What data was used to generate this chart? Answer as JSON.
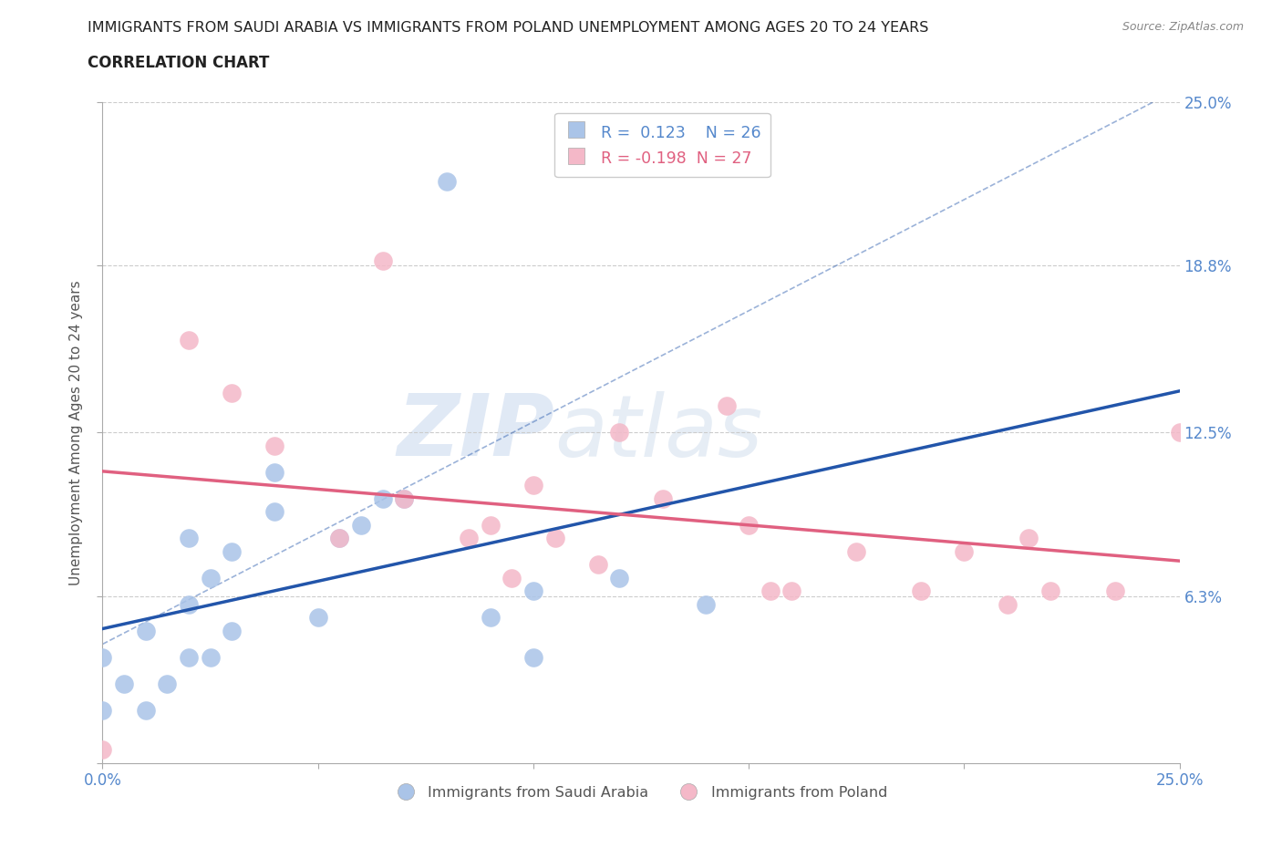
{
  "title_line1": "IMMIGRANTS FROM SAUDI ARABIA VS IMMIGRANTS FROM POLAND UNEMPLOYMENT AMONG AGES 20 TO 24 YEARS",
  "title_line2": "CORRELATION CHART",
  "source": "Source: ZipAtlas.com",
  "ylabel": "Unemployment Among Ages 20 to 24 years",
  "xlim": [
    0.0,
    0.25
  ],
  "ylim": [
    0.0,
    0.25
  ],
  "yticks": [
    0.0,
    0.063,
    0.125,
    0.188,
    0.25
  ],
  "ytick_labels_right": [
    "",
    "6.3%",
    "12.5%",
    "18.8%",
    "25.0%"
  ],
  "xtick_labels": [
    "0.0%",
    "",
    "",
    "",
    "",
    "25.0%"
  ],
  "r_saudi": 0.123,
  "n_saudi": 26,
  "r_poland": -0.198,
  "n_poland": 27,
  "saudi_color": "#aac4e8",
  "poland_color": "#f4b8c8",
  "saudi_line_color": "#2255aa",
  "poland_line_color": "#e06080",
  "legend_label_saudi": "Immigrants from Saudi Arabia",
  "legend_label_poland": "Immigrants from Poland",
  "watermark_zip": "ZIP",
  "watermark_atlas": "atlas",
  "background_color": "#ffffff",
  "grid_color": "#cccccc",
  "tick_label_color": "#5588cc",
  "saudi_x": [
    0.0,
    0.0,
    0.005,
    0.01,
    0.01,
    0.015,
    0.02,
    0.02,
    0.02,
    0.025,
    0.025,
    0.03,
    0.03,
    0.04,
    0.04,
    0.05,
    0.055,
    0.06,
    0.065,
    0.07,
    0.08,
    0.09,
    0.1,
    0.1,
    0.12,
    0.14
  ],
  "saudi_y": [
    0.02,
    0.04,
    0.03,
    0.02,
    0.05,
    0.03,
    0.04,
    0.06,
    0.085,
    0.04,
    0.07,
    0.05,
    0.08,
    0.095,
    0.11,
    0.055,
    0.085,
    0.09,
    0.1,
    0.1,
    0.22,
    0.055,
    0.04,
    0.065,
    0.07,
    0.06
  ],
  "poland_x": [
    0.0,
    0.02,
    0.03,
    0.04,
    0.055,
    0.065,
    0.07,
    0.085,
    0.09,
    0.095,
    0.1,
    0.105,
    0.115,
    0.12,
    0.13,
    0.145,
    0.15,
    0.155,
    0.16,
    0.175,
    0.19,
    0.2,
    0.21,
    0.215,
    0.22,
    0.235,
    0.25
  ],
  "poland_y": [
    0.005,
    0.16,
    0.14,
    0.12,
    0.085,
    0.19,
    0.1,
    0.085,
    0.09,
    0.07,
    0.105,
    0.085,
    0.075,
    0.125,
    0.1,
    0.135,
    0.09,
    0.065,
    0.065,
    0.08,
    0.065,
    0.08,
    0.06,
    0.085,
    0.065,
    0.065,
    0.125
  ]
}
